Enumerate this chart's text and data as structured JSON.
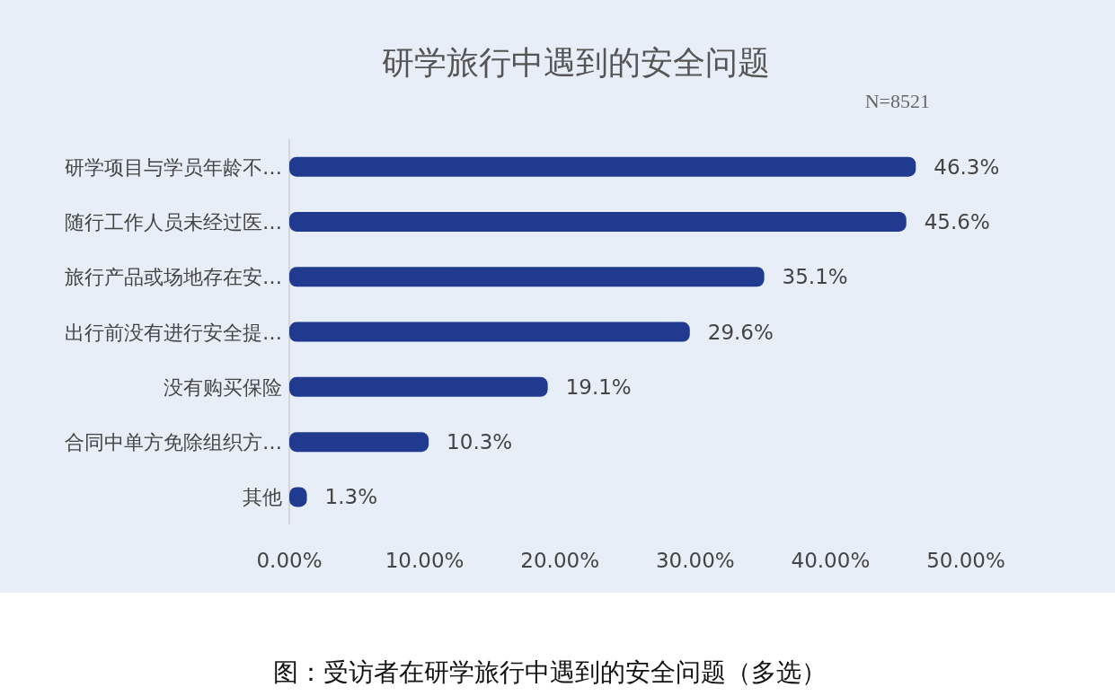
{
  "chart_data": {
    "type": "bar",
    "orientation": "horizontal",
    "title": "研学旅行中遇到的安全问题",
    "subtitle": "N=8521",
    "categories": [
      "研学项目与学员年龄不…",
      "随行工作人员未经过医…",
      "旅行产品或场地存在安…",
      "出行前没有进行安全提…",
      "没有购买保险",
      "合同中单方免除组织方…",
      "其他"
    ],
    "values": [
      46.3,
      45.6,
      35.1,
      29.6,
      19.1,
      10.3,
      1.3
    ],
    "value_labels": [
      "46.3%",
      "45.6%",
      "35.1%",
      "29.6%",
      "19.1%",
      "10.3%",
      "1.3%"
    ],
    "color": "#1f3a8f",
    "xlim": [
      0,
      50
    ],
    "xticks": [
      {
        "value": 0,
        "label": "0.00%"
      },
      {
        "value": 10,
        "label": "10.00%"
      },
      {
        "value": 20,
        "label": "20.00%"
      },
      {
        "value": 30,
        "label": "30.00%"
      },
      {
        "value": 40,
        "label": "40.00%"
      },
      {
        "value": 50,
        "label": "50.00%"
      }
    ],
    "annotations": [
      "图：受访者在研学旅行中遇到的安全问题（多选）"
    ]
  }
}
